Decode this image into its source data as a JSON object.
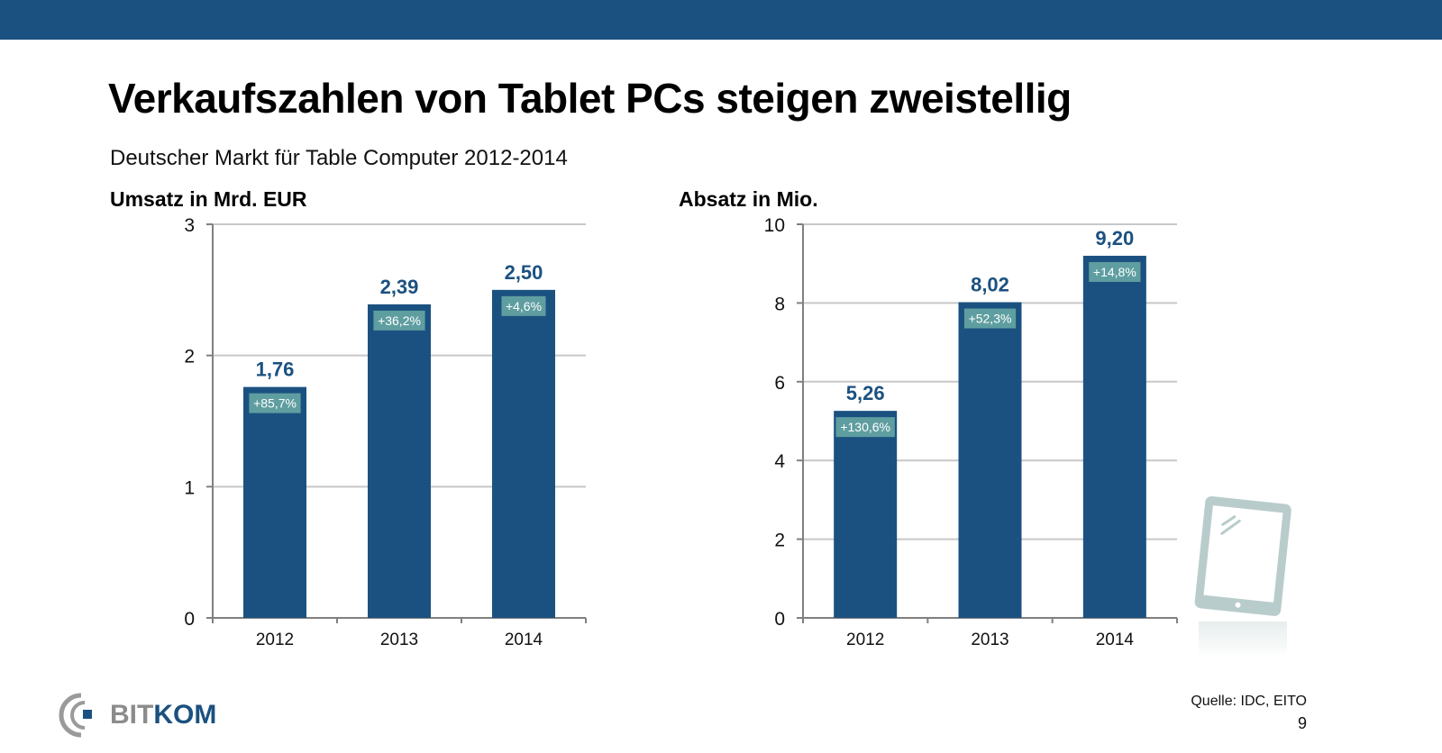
{
  "slide": {
    "title": "Verkaufszahlen von Tablet PCs steigen zweistellig",
    "subtitle": "Deutscher Markt für Table Computer 2012-2014",
    "source": "Quelle: IDC, EITO",
    "page_number": "9",
    "logo": {
      "part1": "BIT",
      "part2": "KOM"
    },
    "colors": {
      "header_bar": "#1b5180",
      "bar": "#1b5180",
      "growth_label_bg": "#5f9ea0",
      "value_label": "#1b5180",
      "tablet_icon": "#b8cccb"
    },
    "tablet_icon": "tablet-icon"
  },
  "chart_data": [
    {
      "type": "bar",
      "title": "Umsatz in Mrd. EUR",
      "categories": [
        "2012",
        "2013",
        "2014"
      ],
      "values": [
        1.76,
        2.39,
        2.5
      ],
      "value_labels": [
        "1,76",
        "2,39",
        "2,50"
      ],
      "growth_labels": [
        "+85,7%",
        "+36,2%",
        "+4,6%"
      ],
      "ylim": [
        0,
        3
      ],
      "yticks": [
        0,
        1,
        2,
        3
      ],
      "ytick_labels": [
        "0",
        "1",
        "2",
        "3"
      ],
      "xlabel": "",
      "ylabel": "",
      "grid": true,
      "legend": "none"
    },
    {
      "type": "bar",
      "title": "Absatz in Mio.",
      "categories": [
        "2012",
        "2013",
        "2014"
      ],
      "values": [
        5.26,
        8.02,
        9.2
      ],
      "value_labels": [
        "5,26",
        "8,02",
        "9,20"
      ],
      "growth_labels": [
        "+130,6%",
        "+52,3%",
        "+14,8%"
      ],
      "ylim": [
        0,
        10
      ],
      "yticks": [
        0,
        2,
        4,
        6,
        8,
        10
      ],
      "ytick_labels": [
        "0",
        "2",
        "4",
        "6",
        "8",
        "10"
      ],
      "xlabel": "",
      "ylabel": "",
      "grid": true,
      "legend": "none"
    }
  ]
}
